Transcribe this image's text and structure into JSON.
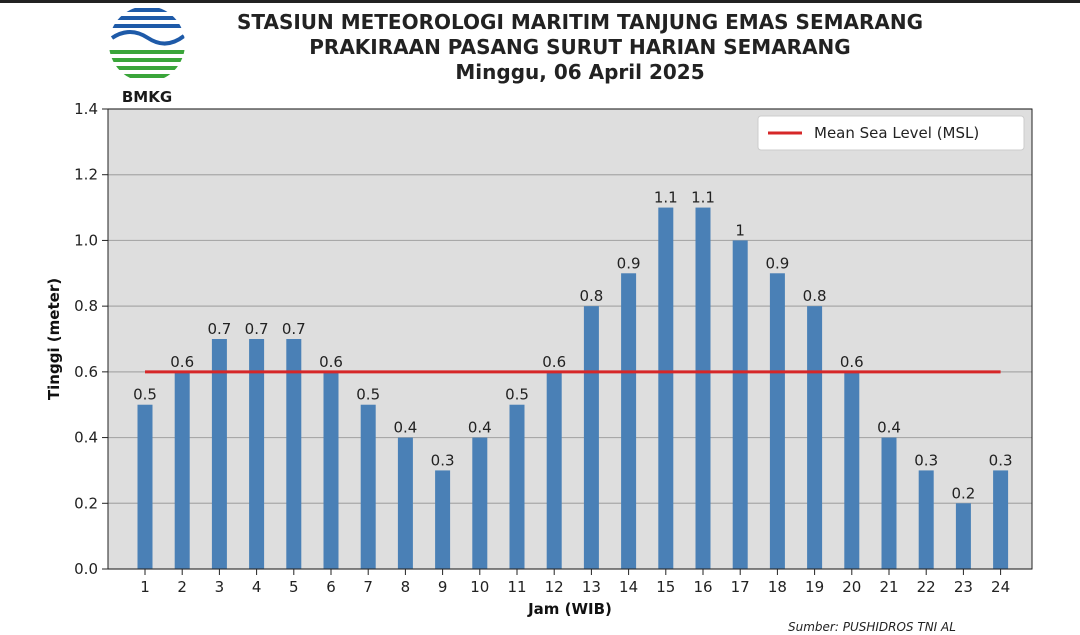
{
  "header": {
    "logo_text": "BMKG",
    "title_line1": "STASIUN METEOROLOGI MARITIM TANJUNG EMAS SEMARANG",
    "title_line2": "PRAKIRAAN PASANG SURUT HARIAN SEMARANG",
    "title_line3": "Minggu, 06 April 2025"
  },
  "footer": {
    "source": "Sumber: PUSHIDROS TNI AL"
  },
  "colors": {
    "bar": "#4a80b6",
    "msl_line": "#d62728",
    "plot_bg": "#dedede",
    "grid": "#a8a8a8",
    "logo_blue": "#1e5aa8",
    "logo_green": "#3aa53a"
  },
  "chart_data": {
    "type": "bar",
    "categories": [
      "1",
      "2",
      "3",
      "4",
      "5",
      "6",
      "7",
      "8",
      "9",
      "10",
      "11",
      "12",
      "13",
      "14",
      "15",
      "16",
      "17",
      "18",
      "19",
      "20",
      "21",
      "22",
      "23",
      "24"
    ],
    "values": [
      0.5,
      0.6,
      0.7,
      0.7,
      0.7,
      0.6,
      0.5,
      0.4,
      0.3,
      0.4,
      0.5,
      0.6,
      0.8,
      0.9,
      1.1,
      1.1,
      1,
      0.9,
      0.8,
      0.6,
      0.4,
      0.3,
      0.2,
      0.3
    ],
    "value_labels": [
      "0.5",
      "0.6",
      "0.7",
      "0.7",
      "0.7",
      "0.6",
      "0.5",
      "0.4",
      "0.3",
      "0.4",
      "0.5",
      "0.6",
      "0.8",
      "0.9",
      "1.1",
      "1.1",
      "1",
      "0.9",
      "0.8",
      "0.6",
      "0.4",
      "0.3",
      "0.2",
      "0.3"
    ],
    "reference_line": {
      "name": "Mean Sea Level (MSL)",
      "value": 0.6
    },
    "xlabel": "Jam (WIB)",
    "ylabel": "Tinggi (meter)",
    "ylim": [
      0,
      1.4
    ],
    "yticks": [
      "0.0",
      "0.2",
      "0.4",
      "0.6",
      "0.8",
      "1.0",
      "1.2",
      "1.4"
    ],
    "grid": "horizontal",
    "legend": "top-right"
  }
}
